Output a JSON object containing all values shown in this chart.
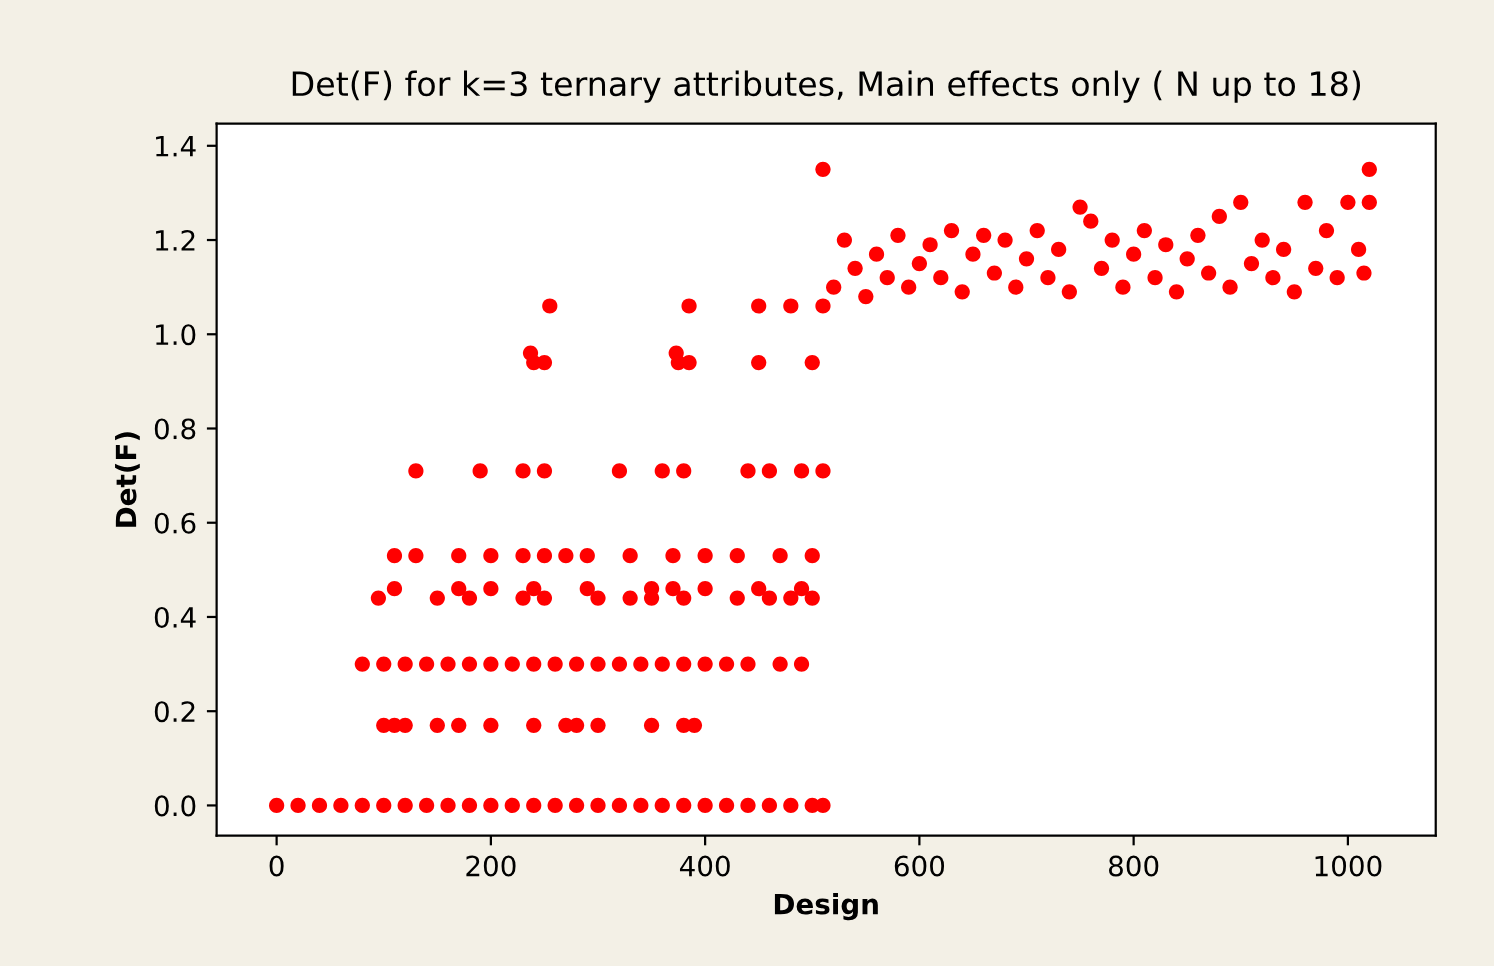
{
  "chart_data": {
    "type": "scatter",
    "title": "Det(F) for k=3 ternary attributes, Main effects only ( N up to 18)",
    "xlabel": "Design",
    "ylabel": "Det(F)",
    "xlim": [
      -56,
      1082
    ],
    "ylim": [
      -0.064,
      1.447
    ],
    "xticks": [
      0,
      200,
      400,
      600,
      800,
      1000
    ],
    "yticks": [
      {
        "value": 0,
        "label": "0.0"
      },
      {
        "value": 0.2,
        "label": "0.2"
      },
      {
        "value": 0.4,
        "label": "0.4"
      },
      {
        "value": 0.6,
        "label": "0.6"
      },
      {
        "value": 0.8,
        "label": "0.8"
      },
      {
        "value": 1.0,
        "label": "1.0"
      },
      {
        "value": 1.2,
        "label": "1.2"
      },
      {
        "value": 1.4,
        "label": "1.4"
      }
    ],
    "grid": false,
    "marker": "circle",
    "series": [
      {
        "color": "#ff0000",
        "x": [
          0,
          20,
          40,
          60,
          80,
          100,
          120,
          140,
          160,
          180,
          200,
          220,
          240,
          260,
          280,
          300,
          320,
          340,
          360,
          380,
          400,
          420,
          440,
          460,
          480,
          500,
          510
        ],
        "values": [
          0,
          0,
          0,
          0,
          0,
          0,
          0,
          0,
          0,
          0,
          0,
          0,
          0,
          0,
          0,
          0,
          0,
          0,
          0,
          0,
          0,
          0,
          0,
          0,
          0,
          0,
          0
        ]
      },
      {
        "color": "#ff0000",
        "x": [
          80,
          100,
          120,
          140,
          160,
          180,
          200,
          220,
          240,
          260,
          280,
          300,
          320,
          340,
          360,
          380,
          400,
          420,
          440,
          470,
          490
        ],
        "values": [
          0.3,
          0.3,
          0.3,
          0.3,
          0.3,
          0.3,
          0.3,
          0.3,
          0.3,
          0.3,
          0.3,
          0.3,
          0.3,
          0.3,
          0.3,
          0.3,
          0.3,
          0.3,
          0.3,
          0.3,
          0.3
        ]
      },
      {
        "color": "#ff0000",
        "x": [
          100,
          110,
          120,
          150,
          170,
          200,
          240,
          270,
          280,
          300,
          350,
          380,
          390
        ],
        "values": [
          0.17,
          0.17,
          0.17,
          0.17,
          0.17,
          0.17,
          0.17,
          0.17,
          0.17,
          0.17,
          0.17,
          0.17,
          0.17
        ]
      },
      {
        "color": "#ff0000",
        "x": [
          95,
          150,
          180,
          230,
          250,
          300,
          330,
          350,
          380,
          430,
          460,
          480,
          500
        ],
        "values": [
          0.44,
          0.44,
          0.44,
          0.44,
          0.44,
          0.44,
          0.44,
          0.44,
          0.44,
          0.44,
          0.44,
          0.44,
          0.44
        ]
      },
      {
        "color": "#ff0000",
        "x": [
          110,
          170,
          200,
          240,
          290,
          350,
          370,
          400,
          450,
          490
        ],
        "values": [
          0.46,
          0.46,
          0.46,
          0.46,
          0.46,
          0.46,
          0.46,
          0.46,
          0.46,
          0.46
        ]
      },
      {
        "color": "#ff0000",
        "x": [
          110,
          130,
          170,
          200,
          230,
          250,
          270,
          290,
          330,
          370,
          400,
          430,
          470,
          500
        ],
        "values": [
          0.53,
          0.53,
          0.53,
          0.53,
          0.53,
          0.53,
          0.53,
          0.53,
          0.53,
          0.53,
          0.53,
          0.53,
          0.53,
          0.53
        ]
      },
      {
        "color": "#ff0000",
        "x": [
          130,
          190,
          230,
          250,
          320,
          360,
          380,
          440,
          460,
          490,
          510
        ],
        "values": [
          0.71,
          0.71,
          0.71,
          0.71,
          0.71,
          0.71,
          0.71,
          0.71,
          0.71,
          0.71,
          0.71
        ]
      },
      {
        "color": "#ff0000",
        "x": [
          240,
          250,
          375,
          385,
          450,
          500,
          237,
          373
        ],
        "values": [
          0.94,
          0.94,
          0.94,
          0.94,
          0.94,
          0.94,
          0.96,
          0.96
        ]
      },
      {
        "color": "#ff0000",
        "x": [
          255,
          385,
          450,
          480,
          510,
          510,
          1020
        ],
        "values": [
          1.06,
          1.06,
          1.06,
          1.06,
          1.06,
          1.35,
          1.35
        ]
      },
      {
        "color": "#ff0000",
        "x": [
          520,
          530,
          540,
          550,
          560,
          570,
          580,
          590,
          600,
          610,
          620,
          630,
          640,
          650,
          660,
          670,
          680,
          690,
          700,
          710,
          720,
          730,
          740,
          750,
          760,
          770,
          780,
          790,
          800,
          810,
          820,
          830,
          840,
          850,
          860,
          870,
          880,
          890,
          900,
          910,
          920,
          930,
          940,
          950,
          960,
          970,
          980,
          990,
          1000,
          1010,
          1020,
          1015
        ],
        "values": [
          1.1,
          1.2,
          1.14,
          1.08,
          1.17,
          1.12,
          1.21,
          1.1,
          1.15,
          1.19,
          1.12,
          1.22,
          1.09,
          1.17,
          1.21,
          1.13,
          1.2,
          1.1,
          1.16,
          1.22,
          1.12,
          1.18,
          1.09,
          1.27,
          1.24,
          1.14,
          1.2,
          1.1,
          1.17,
          1.22,
          1.12,
          1.19,
          1.09,
          1.16,
          1.21,
          1.13,
          1.25,
          1.1,
          1.28,
          1.15,
          1.2,
          1.12,
          1.18,
          1.09,
          1.28,
          1.14,
          1.22,
          1.12,
          1.28,
          1.18,
          1.28,
          1.13
        ]
      }
    ]
  }
}
